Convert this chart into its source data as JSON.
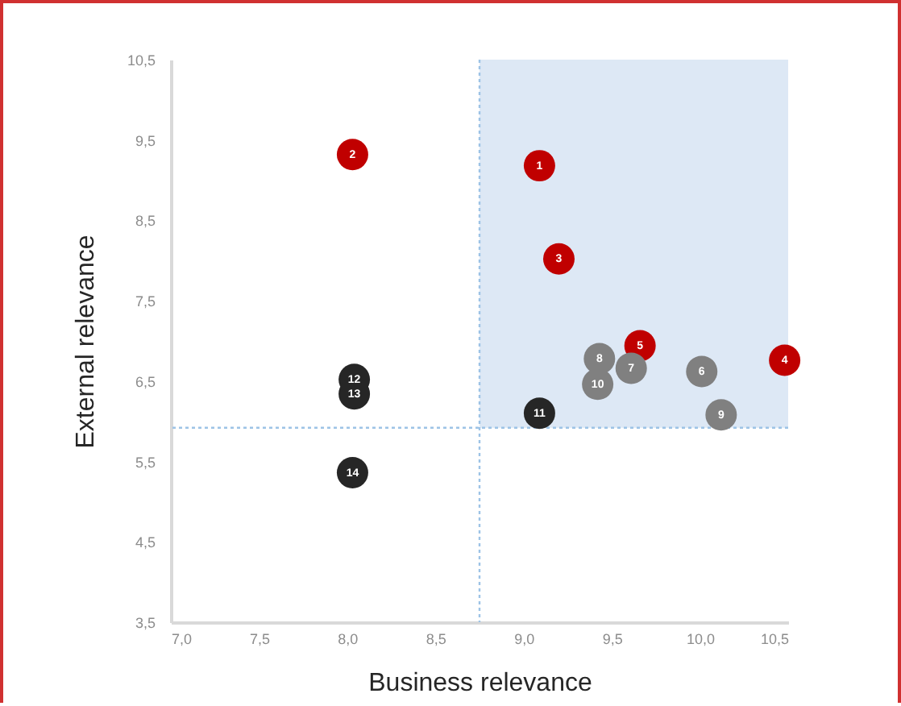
{
  "chart_data": {
    "type": "scatter",
    "xlabel": "Business relevance",
    "ylabel": "External relevance",
    "xlim": [
      7,
      10.5
    ],
    "ylim": [
      3.5,
      10.5
    ],
    "xticks": [
      {
        "value": 7,
        "label": "7,0"
      },
      {
        "value": 7.5,
        "label": "7,5"
      },
      {
        "value": 8,
        "label": "8,0"
      },
      {
        "value": 8.5,
        "label": "8,5"
      },
      {
        "value": 9,
        "label": "9,0"
      },
      {
        "value": 9.5,
        "label": "9,5"
      },
      {
        "value": 10,
        "label": "10,0"
      },
      {
        "value": 10.5,
        "label": "10,5"
      }
    ],
    "yticks": [
      {
        "value": 3.5,
        "label": "3,5"
      },
      {
        "value": 4.5,
        "label": "4,5"
      },
      {
        "value": 5.5,
        "label": "5,5"
      },
      {
        "value": 6.5,
        "label": "6,5"
      },
      {
        "value": 7.5,
        "label": "7,5"
      },
      {
        "value": 8.5,
        "label": "8,5"
      },
      {
        "value": 9.5,
        "label": "9,5"
      },
      {
        "value": 10.5,
        "label": "10,5"
      }
    ],
    "grid": false,
    "marker": "circle",
    "series": [
      {
        "color": "#c00000",
        "x": [
          9.09,
          8.03,
          9.2,
          10.48,
          9.66
        ],
        "values": [
          9.18,
          9.32,
          8.02,
          6.76,
          6.94
        ]
      },
      {
        "color": "#808080",
        "x": [
          10.01,
          9.61,
          9.43,
          10.12,
          9.42
        ],
        "values": [
          6.62,
          6.66,
          6.78,
          6.08,
          6.46
        ]
      },
      {
        "color": "#262626",
        "x": [
          9.09,
          8.04,
          8.04,
          8.03
        ],
        "values": [
          6.1,
          6.52,
          6.34,
          5.36
        ]
      }
    ],
    "ref_lines": [
      {
        "axis": "x",
        "value": 8.75,
        "color": "#9dc3e6",
        "line_style": "dotted"
      },
      {
        "axis": "y",
        "value": 5.92,
        "color": "#9dc3e6",
        "line_style": "dotted"
      }
    ],
    "bands": [
      {
        "axis": "x",
        "from": 8.75,
        "to": 10.5,
        "color": "#dde8f5"
      }
    ],
    "annotations": [
      {
        "text": "1",
        "x": 9.09,
        "y": 9.18
      },
      {
        "text": "2",
        "x": 8.03,
        "y": 9.32
      },
      {
        "text": "3",
        "x": 9.2,
        "y": 8.02
      },
      {
        "text": "4",
        "x": 10.48,
        "y": 6.76
      },
      {
        "text": "5",
        "x": 9.66,
        "y": 6.94
      },
      {
        "text": "6",
        "x": 10.01,
        "y": 6.62
      },
      {
        "text": "7",
        "x": 9.61,
        "y": 6.66
      },
      {
        "text": "8",
        "x": 9.43,
        "y": 6.78
      },
      {
        "text": "9",
        "x": 10.12,
        "y": 6.08
      },
      {
        "text": "10",
        "x": 9.42,
        "y": 6.46
      },
      {
        "text": "11",
        "x": 9.09,
        "y": 6.1
      },
      {
        "text": "12",
        "x": 8.04,
        "y": 6.52
      },
      {
        "text": "13",
        "x": 8.04,
        "y": 6.34
      },
      {
        "text": "14",
        "x": 8.03,
        "y": 5.36
      }
    ]
  }
}
